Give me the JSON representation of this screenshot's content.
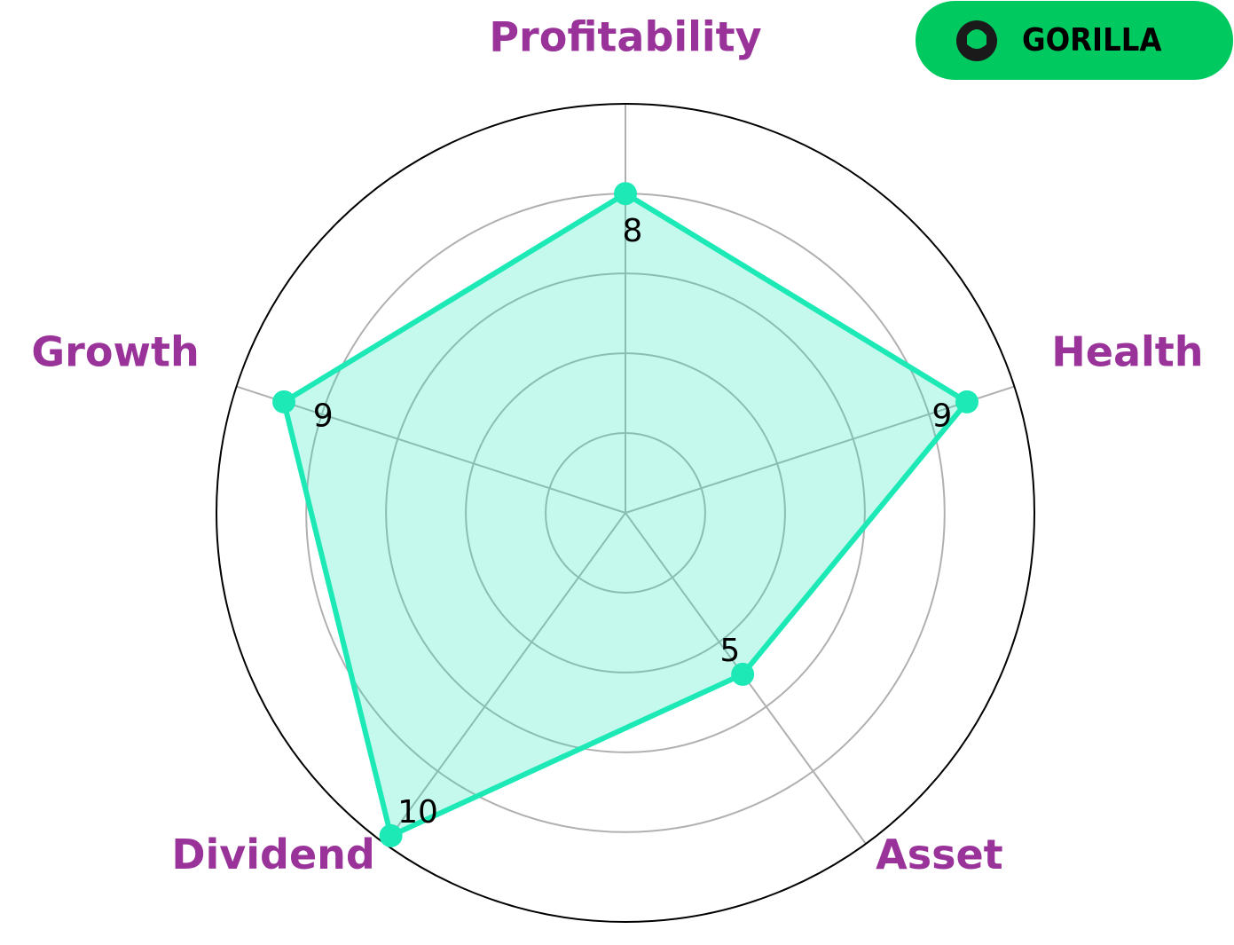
{
  "chart_data": {
    "type": "radar",
    "categories": [
      "Profitability",
      "Health",
      "Asset",
      "Dividend",
      "Growth"
    ],
    "values": [
      8,
      9,
      5,
      10,
      9
    ],
    "color": "#1de9b6",
    "label_color": "#993399",
    "rlim": [
      0,
      10.25
    ],
    "rticks": [
      2,
      4,
      6,
      8
    ],
    "grid": true
  },
  "logo": {
    "text": "GORILLA"
  }
}
